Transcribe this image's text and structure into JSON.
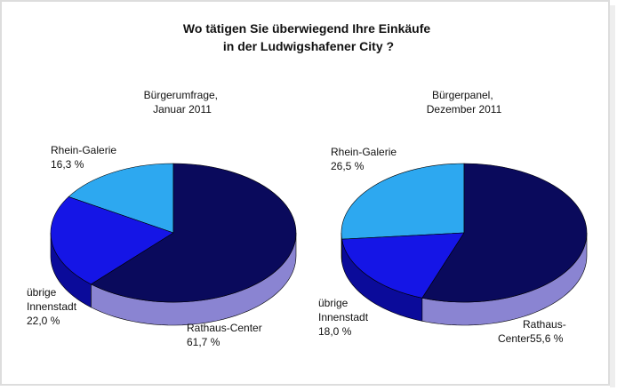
{
  "title": "Wo tätigen Sie überwiegend Ihre Einkäufe in der Ludwigshafener City ?",
  "chart_data": [
    {
      "type": "pie",
      "title": "Bürgerumfrage, Januar 2011",
      "categories": [
        "Rhein-Galerie",
        "übrige Innenstadt",
        "Rathaus-Center"
      ],
      "values": [
        16.3,
        22.0,
        61.7
      ],
      "value_labels": [
        "16,3 %",
        "22,0 %",
        "61,7 %"
      ],
      "colors": [
        "#2da8f0",
        "#1515e6",
        "#0a0a5c"
      ]
    },
    {
      "type": "pie",
      "title": "Bürgerpanel, Dezember 2011",
      "categories": [
        "Rhein-Galerie",
        "übrige Innenstadt",
        "Rathaus-Center"
      ],
      "values": [
        26.5,
        18.0,
        55.6
      ],
      "value_labels": [
        "26,5 %",
        "18,0 %",
        "55,6 %"
      ],
      "colors": [
        "#2da8f0",
        "#1515e6",
        "#0a0a5c"
      ]
    }
  ]
}
